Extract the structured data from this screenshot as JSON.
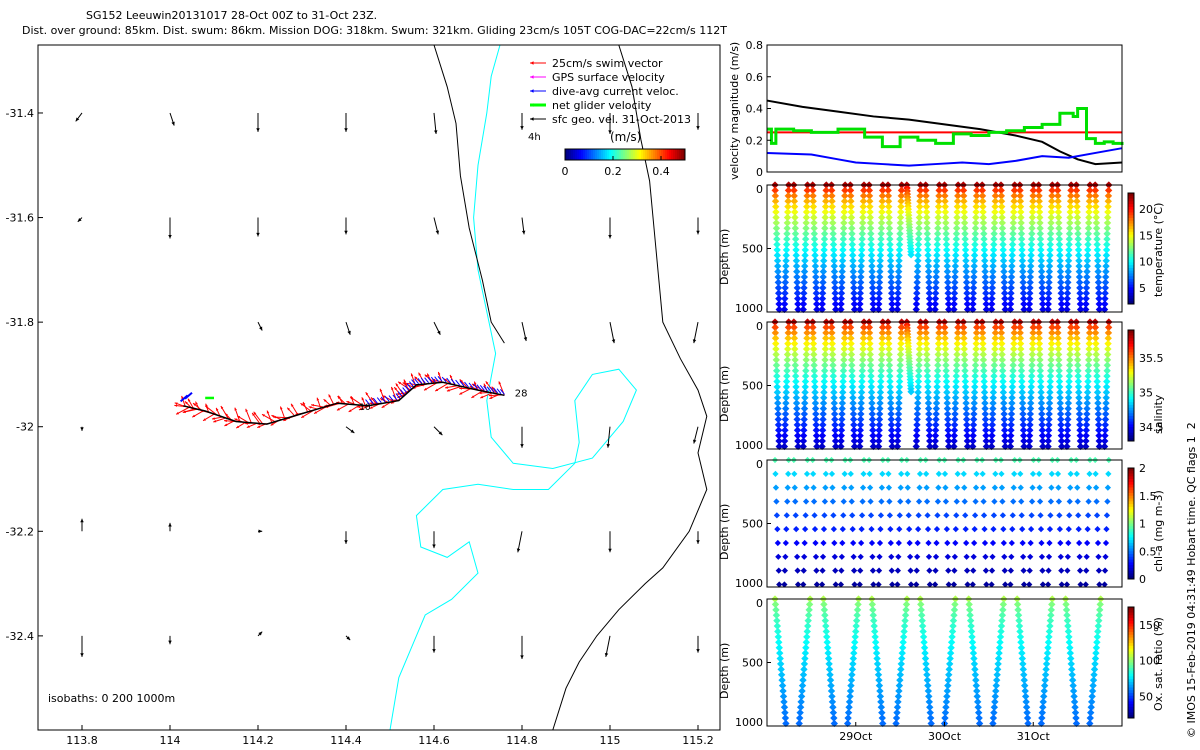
{
  "titles": {
    "line1": "SG152 Leeuwin20131017 28-Oct 00Z to 31-Oct 23Z.",
    "line2": "Dist. over ground: 85km. Dist. swum: 86km. Mission DOG: 318km. Swum: 321km. Gliding 23cm/s 105T COG-DAC=22cm/s 112T"
  },
  "credit": "© IMOS 15-Feb-2019 04:31:49 Hobart time. QC flags 1  2",
  "chart_data": [
    {
      "type": "scatter",
      "name": "map",
      "xlim": [
        113.7,
        115.25
      ],
      "ylim": [
        -32.58,
        -31.27
      ],
      "xticks": [
        113.8,
        114,
        114.2,
        114.4,
        114.6,
        114.8,
        115,
        115.2
      ],
      "xtick_labels": [
        "113.8",
        "114",
        "114.2",
        "114.4",
        "114.6",
        "114.8",
        "115",
        "115.2"
      ],
      "yticks": [
        -31.4,
        -31.6,
        -31.8,
        -32,
        -32.2,
        -32.4
      ],
      "ytick_labels": [
        "-31.4",
        "-31.6",
        "-31.8",
        "-32",
        "-32.2",
        "-32.4"
      ],
      "legend": {
        "placement": "top-right",
        "entries": [
          {
            "label": "25cm/s swim vector",
            "color": "#ff0000"
          },
          {
            "label": "GPS surface velocity",
            "color": "#ff00ff"
          },
          {
            "label": "dive-avg current veloc.",
            "color": "#0000ff"
          },
          {
            "label": "net glider velocity",
            "color": "#00ff00"
          },
          {
            "label": "sfc geo. vel. 31-Oct-2013",
            "color": "#000000"
          }
        ]
      },
      "colorbar": {
        "label": "(m/s)",
        "ticks": [
          "0",
          "0.2",
          "0.4"
        ],
        "range": [
          0,
          0.5
        ]
      },
      "annotations": {
        "isobaths": "isobaths: 0   200  1000m",
        "vec_label": "4h",
        "track_end_label": "28",
        "track_mid_label": "10"
      },
      "track": [
        [
          114.03,
          -31.96
        ],
        [
          114.08,
          -31.97
        ],
        [
          114.15,
          -31.99
        ],
        [
          114.22,
          -31.995
        ],
        [
          114.3,
          -31.975
        ],
        [
          114.38,
          -31.955
        ],
        [
          114.45,
          -31.96
        ],
        [
          114.52,
          -31.95
        ],
        [
          114.56,
          -31.92
        ],
        [
          114.62,
          -31.915
        ],
        [
          114.7,
          -31.93
        ],
        [
          114.76,
          -31.94
        ]
      ],
      "sfc_vectors": {
        "lons": [
          113.8,
          114,
          114.2,
          114.4,
          114.6,
          114.8,
          115,
          115.2
        ],
        "lats": [
          -31.4,
          -31.6,
          -31.8,
          -32,
          -32.2,
          -32.4
        ],
        "u_cm": [
          [
            -1.5,
            1,
            0,
            0,
            0.5,
            0,
            0,
            0
          ],
          [
            -1,
            0,
            0,
            0,
            1,
            0.5,
            0,
            0
          ],
          [
            0,
            0,
            1,
            1,
            1.5,
            1,
            1,
            -1
          ],
          [
            0,
            0,
            0,
            2,
            2,
            0,
            -0.5,
            -1
          ],
          [
            0,
            0,
            1,
            0,
            0,
            -1,
            0,
            0
          ],
          [
            0,
            0,
            1,
            1,
            0,
            0,
            -1,
            0
          ]
        ],
        "v_cm": [
          [
            -2,
            -3,
            -4.5,
            -4.5,
            -5,
            -4,
            -5,
            -4
          ],
          [
            -1,
            -5,
            -4.5,
            -4,
            -4,
            -4,
            -5,
            -4
          ],
          [
            0,
            0,
            -2,
            -3,
            -3,
            -4.5,
            -5,
            -5
          ],
          [
            -1,
            0,
            0,
            -1.5,
            -2,
            -5,
            -5,
            -4
          ],
          [
            3,
            2,
            0,
            -3,
            -4,
            -5,
            -5,
            -3
          ],
          [
            -5,
            -2,
            1,
            -1,
            -4,
            -5.5,
            -5,
            -4
          ]
        ]
      }
    },
    {
      "type": "line",
      "name": "velocity",
      "xlim": [
        0,
        4
      ],
      "ylim": [
        0,
        0.8
      ],
      "yticks": [
        0,
        0.2,
        0.4,
        0.6,
        0.8
      ],
      "ytick_labels": [
        "0",
        "0.2",
        "0.4",
        "0.6",
        "0.8"
      ],
      "ylabel": "velocity magnitude (m/s)",
      "series": [
        {
          "color": "#000000",
          "x": [
            0,
            0.4,
            0.8,
            1.2,
            1.6,
            2,
            2.4,
            2.8,
            3.1,
            3.3,
            3.5,
            3.7,
            4
          ],
          "y": [
            0.45,
            0.41,
            0.38,
            0.35,
            0.33,
            0.3,
            0.27,
            0.23,
            0.19,
            0.13,
            0.08,
            0.05,
            0.06
          ]
        },
        {
          "color": "#ff0000",
          "x": [
            0,
            4
          ],
          "y": [
            0.25,
            0.25
          ]
        },
        {
          "color": "#0000ff",
          "x": [
            0,
            0.5,
            0.8,
            1,
            1.3,
            1.6,
            1.9,
            2.2,
            2.5,
            2.8,
            3.1,
            3.4,
            3.7,
            4
          ],
          "y": [
            0.12,
            0.11,
            0.08,
            0.06,
            0.05,
            0.04,
            0.05,
            0.06,
            0.05,
            0.07,
            0.1,
            0.09,
            0.12,
            0.15
          ]
        },
        {
          "color": "#00e000",
          "x": [
            0,
            0.05,
            0.1,
            0.3,
            0.5,
            0.8,
            1.1,
            1.3,
            1.5,
            1.7,
            1.9,
            2.1,
            2.3,
            2.5,
            2.7,
            2.9,
            3.1,
            3.3,
            3.45,
            3.5,
            3.6,
            3.7,
            3.8,
            3.9,
            4
          ],
          "y": [
            0.27,
            0.18,
            0.27,
            0.26,
            0.25,
            0.27,
            0.22,
            0.16,
            0.22,
            0.2,
            0.18,
            0.24,
            0.23,
            0.25,
            0.26,
            0.28,
            0.3,
            0.37,
            0.35,
            0.4,
            0.21,
            0.18,
            0.19,
            0.18,
            0.17
          ]
        }
      ]
    },
    {
      "type": "scatter",
      "name": "temperature",
      "xlim": [
        0,
        4
      ],
      "ylim": [
        1000,
        0
      ],
      "ylabel": "Depth (m)",
      "cbar_label": "temperature (°C)",
      "cbar_ticks": [
        "20",
        "15",
        "10",
        "5"
      ],
      "cbar_range": [
        2,
        23
      ],
      "ncasts": 36,
      "surface_value": 22,
      "deep_value": 4,
      "yticks": [
        0,
        500,
        1000
      ],
      "ytick_labels": [
        "0",
        "500",
        "1000"
      ]
    },
    {
      "type": "scatter",
      "name": "salinity",
      "xlim": [
        0,
        4
      ],
      "ylim": [
        1000,
        0
      ],
      "ylabel": "Depth (m)",
      "cbar_label": "salinity",
      "cbar_ticks": [
        "35.5",
        "35",
        "34.5"
      ],
      "cbar_range": [
        34.3,
        35.9
      ],
      "ncasts": 36,
      "surface_value": 35.8,
      "deep_value": 34.4,
      "yticks": [
        0,
        500,
        1000
      ],
      "ytick_labels": [
        "0",
        "500",
        "1000"
      ]
    },
    {
      "type": "scatter",
      "name": "chl",
      "xlim": [
        0,
        4
      ],
      "ylim": [
        1000,
        0
      ],
      "ylabel": "Depth (m)",
      "cbar_label": "chl-a (mg m-3)",
      "cbar_ticks": [
        "2",
        "1.5",
        "1",
        "0.5",
        "0"
      ],
      "cbar_range": [
        0,
        2
      ],
      "ncasts": 36,
      "surface_value": 0.9,
      "deep_value": 0.05,
      "yticks": [
        0,
        500,
        1000
      ],
      "ytick_labels": [
        "0",
        "500",
        "1000"
      ]
    },
    {
      "type": "scatter",
      "name": "oxygen",
      "xlim": [
        0,
        4
      ],
      "ylim": [
        1000,
        0
      ],
      "ylabel": "Depth (m)",
      "cbar_label": "Ox. sat. ratio (%)",
      "cbar_ticks": [
        "150",
        "100",
        "50"
      ],
      "cbar_range": [
        20,
        175
      ],
      "ncasts": 14,
      "surface_value": 105,
      "deep_value": 55,
      "yticks": [
        0,
        500,
        1000
      ],
      "ytick_labels": [
        "0",
        "500",
        "1000"
      ],
      "xticks": [
        1,
        2,
        3
      ],
      "xtick_labels": [
        "29Oct",
        "30Oct",
        "31Oct"
      ]
    }
  ]
}
